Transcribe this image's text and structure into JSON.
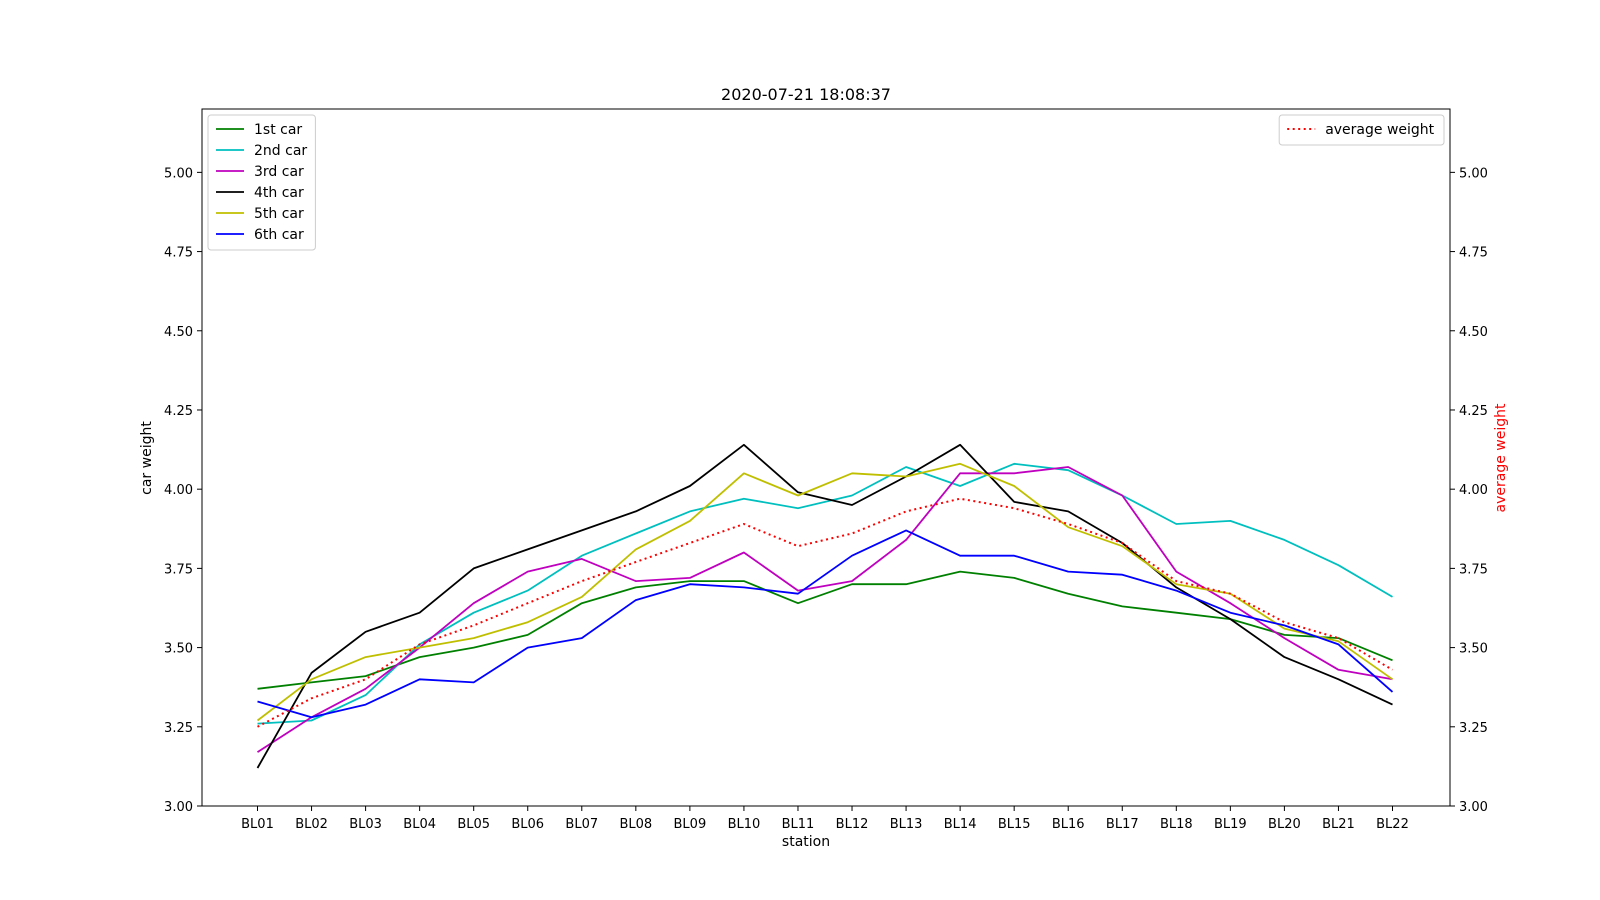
{
  "chart_data": {
    "type": "line",
    "title": "2020-07-21 18:08:37",
    "xlabel": "station",
    "ylabel": "car weight",
    "y2label": "average weight",
    "ylim": [
      3.0,
      5.2
    ],
    "yticks": [
      "3.00",
      "3.25",
      "3.50",
      "3.75",
      "4.00",
      "4.25",
      "4.50",
      "4.75",
      "5.00"
    ],
    "grid": false,
    "categories": [
      "BL01",
      "BL02",
      "BL03",
      "BL04",
      "BL05",
      "BL06",
      "BL07",
      "BL08",
      "BL09",
      "BL10",
      "BL11",
      "BL12",
      "BL13",
      "BL14",
      "BL15",
      "BL16",
      "BL17",
      "BL18",
      "BL19",
      "BL20",
      "BL21",
      "BL22"
    ],
    "series": [
      {
        "name": "1st car",
        "color": "#008000",
        "style": "solid",
        "axis": "left",
        "values": [
          3.37,
          3.39,
          3.41,
          3.47,
          3.5,
          3.54,
          3.64,
          3.69,
          3.71,
          3.71,
          3.64,
          3.7,
          3.7,
          3.74,
          3.72,
          3.67,
          3.63,
          3.61,
          3.59,
          3.54,
          3.53,
          3.46
        ]
      },
      {
        "name": "2nd car",
        "color": "#00bfbf",
        "style": "solid",
        "axis": "left",
        "values": [
          3.26,
          3.27,
          3.35,
          3.51,
          3.61,
          3.68,
          3.79,
          3.86,
          3.93,
          3.97,
          3.94,
          3.98,
          4.07,
          4.01,
          4.08,
          4.06,
          3.98,
          3.89,
          3.9,
          3.84,
          3.76,
          3.66
        ]
      },
      {
        "name": "3rd car",
        "color": "#bf00bf",
        "style": "solid",
        "axis": "left",
        "values": [
          3.17,
          3.28,
          3.37,
          3.5,
          3.64,
          3.74,
          3.78,
          3.71,
          3.72,
          3.8,
          3.68,
          3.71,
          3.84,
          4.05,
          4.05,
          4.07,
          3.98,
          3.74,
          3.64,
          3.53,
          3.43,
          3.4
        ]
      },
      {
        "name": "4th car",
        "color": "#000000",
        "style": "solid",
        "axis": "left",
        "values": [
          3.12,
          3.42,
          3.55,
          3.61,
          3.75,
          3.81,
          3.87,
          3.93,
          4.01,
          4.14,
          3.99,
          3.95,
          4.04,
          4.14,
          3.96,
          3.93,
          3.83,
          3.69,
          3.59,
          3.47,
          3.4,
          3.32
        ]
      },
      {
        "name": "5th car",
        "color": "#bfbf00",
        "style": "solid",
        "axis": "left",
        "values": [
          3.27,
          3.4,
          3.47,
          3.5,
          3.53,
          3.58,
          3.66,
          3.81,
          3.9,
          4.05,
          3.98,
          4.05,
          4.04,
          4.08,
          4.01,
          3.88,
          3.82,
          3.7,
          3.67,
          3.56,
          3.52,
          3.4
        ]
      },
      {
        "name": "6th car",
        "color": "#0000ff",
        "style": "solid",
        "axis": "left",
        "values": [
          3.33,
          3.28,
          3.32,
          3.4,
          3.39,
          3.5,
          3.53,
          3.65,
          3.7,
          3.69,
          3.67,
          3.79,
          3.87,
          3.79,
          3.79,
          3.74,
          3.73,
          3.68,
          3.61,
          3.57,
          3.51,
          3.36
        ]
      },
      {
        "name": "average weight",
        "color": "#ff0000",
        "style": "dotted",
        "axis": "right",
        "values": [
          3.25,
          3.34,
          3.4,
          3.51,
          3.57,
          3.64,
          3.71,
          3.77,
          3.83,
          3.89,
          3.82,
          3.86,
          3.93,
          3.97,
          3.94,
          3.89,
          3.83,
          3.71,
          3.67,
          3.58,
          3.53,
          3.43
        ]
      }
    ],
    "legend_left": {
      "placement": "upper-left",
      "entries": [
        "1st car",
        "2nd car",
        "3rd car",
        "4th car",
        "5th car",
        "6th car"
      ]
    },
    "legend_right": {
      "placement": "upper-right",
      "entries": [
        "average weight"
      ]
    },
    "colors": {
      "y2label": "#ff0000",
      "axes": "#000000",
      "background": "#ffffff"
    }
  }
}
